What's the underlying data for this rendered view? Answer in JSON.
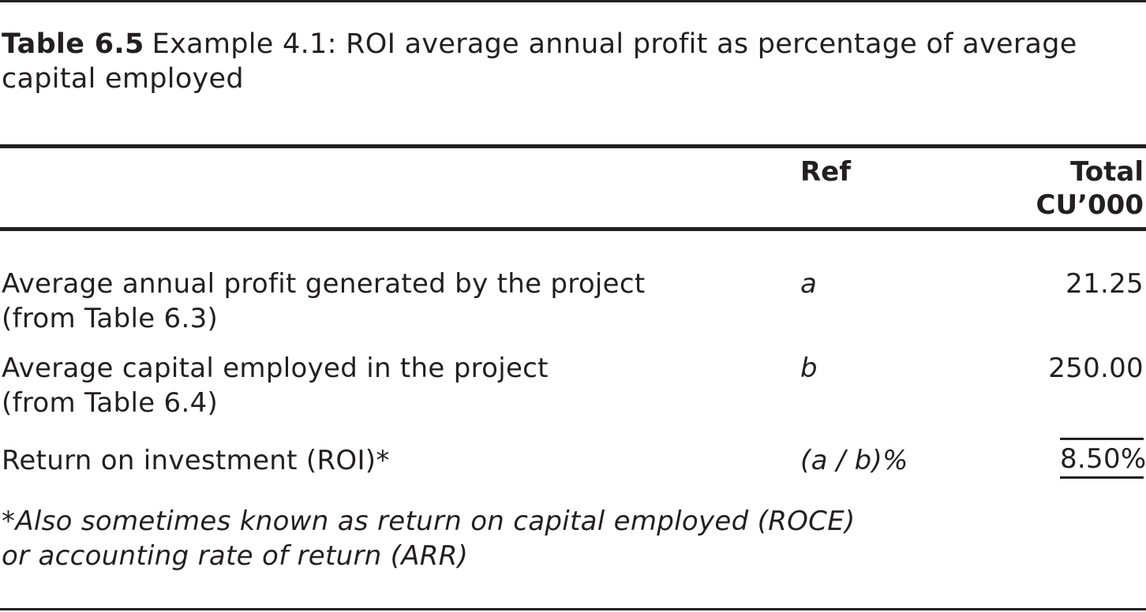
{
  "caption": {
    "label": "Table 6.5",
    "text": "Example 4.1: ROI average annual profit as percentage of average capital employed"
  },
  "header": {
    "ref": "Ref",
    "total_line1": "Total",
    "total_line2": "CU’000"
  },
  "rows": [
    {
      "description_line1": "Average annual profit generated by the project",
      "description_line2": "(from Table 6.3)",
      "ref": "a",
      "value": "21.25"
    },
    {
      "description_line1": "Average capital employed in the project",
      "description_line2": "(from Table 6.4)",
      "ref": "b",
      "value": "250.00"
    },
    {
      "description_line1": "Return on investment (ROI)*",
      "description_line2": "",
      "ref": "(a / b)%",
      "value": "8.50%"
    }
  ],
  "footnote": {
    "asterisk": "*",
    "text": "Also sometimes known as return on capital employed (ROCE) or accounting rate of return (ARR)"
  }
}
